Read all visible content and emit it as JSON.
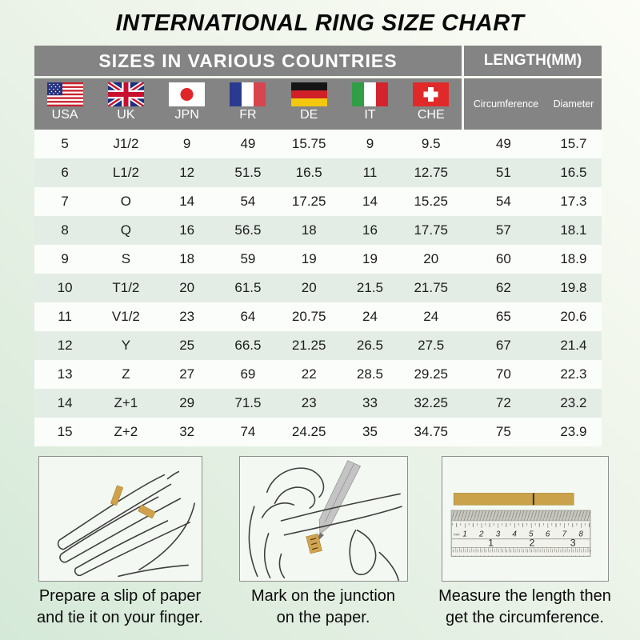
{
  "title": "INTERNATIONAL RING SIZE CHART",
  "chart_data": {
    "type": "table",
    "title": "INTERNATIONAL RING SIZE CHART",
    "group_headers": {
      "countries": "SIZES IN VARIOUS COUNTRIES",
      "length": "LENGTH(MM)"
    },
    "columns": [
      "USA",
      "UK",
      "JPN",
      "FR",
      "DE",
      "IT",
      "CHE",
      "Circumference",
      "Diameter"
    ],
    "column_keys": [
      "usa",
      "uk",
      "jpn",
      "fr",
      "de",
      "it",
      "che",
      "circumference",
      "diameter"
    ],
    "rows": [
      [
        "5",
        "J1/2",
        "9",
        "49",
        "15.75",
        "9",
        "9.5",
        "49",
        "15.7"
      ],
      [
        "6",
        "L1/2",
        "12",
        "51.5",
        "16.5",
        "11",
        "12.75",
        "51",
        "16.5"
      ],
      [
        "7",
        "O",
        "14",
        "54",
        "17.25",
        "14",
        "15.25",
        "54",
        "17.3"
      ],
      [
        "8",
        "Q",
        "16",
        "56.5",
        "18",
        "16",
        "17.75",
        "57",
        "18.1"
      ],
      [
        "9",
        "S",
        "18",
        "59",
        "19",
        "19",
        "20",
        "60",
        "18.9"
      ],
      [
        "10",
        "T1/2",
        "20",
        "61.5",
        "20",
        "21.5",
        "21.75",
        "62",
        "19.8"
      ],
      [
        "11",
        "V1/2",
        "23",
        "64",
        "20.75",
        "24",
        "24",
        "65",
        "20.6"
      ],
      [
        "12",
        "Y",
        "25",
        "66.5",
        "21.25",
        "26.5",
        "27.5",
        "67",
        "21.4"
      ],
      [
        "13",
        "Z",
        "27",
        "69",
        "22",
        "28.5",
        "29.25",
        "70",
        "22.3"
      ],
      [
        "14",
        "Z+1",
        "29",
        "71.5",
        "23",
        "33",
        "32.25",
        "72",
        "23.2"
      ],
      [
        "15",
        "Z+2",
        "32",
        "74",
        "24.25",
        "35",
        "34.75",
        "75",
        "23.9"
      ]
    ]
  },
  "flags": [
    {
      "country": "USA",
      "icon": "usa-flag-icon"
    },
    {
      "country": "UK",
      "icon": "uk-flag-icon"
    },
    {
      "country": "JPN",
      "icon": "jpn-flag-icon"
    },
    {
      "country": "FR",
      "icon": "fr-flag-icon"
    },
    {
      "country": "DE",
      "icon": "de-flag-icon"
    },
    {
      "country": "IT",
      "icon": "it-flag-icon"
    },
    {
      "country": "CHE",
      "icon": "che-flag-icon"
    }
  ],
  "steps": [
    {
      "line1": "Prepare a slip of paper",
      "line2": "and tie it on your finger."
    },
    {
      "line1": "Mark on the junction",
      "line2": "on the paper."
    },
    {
      "line1": "Measure the length then",
      "line2": "get the circumference."
    }
  ],
  "ruler": {
    "cm_numbers": [
      "1",
      "2",
      "3",
      "4",
      "5",
      "6",
      "7",
      "8"
    ],
    "inch_numbers": [
      "1",
      "2",
      "3"
    ],
    "unit_label": "mm"
  },
  "colors": {
    "header_gray": "#848484",
    "row_green": "#e4ede5",
    "row_white": "#fbfdfa",
    "paper_tan": "#c9a24a",
    "background_mint": "#d5e9d8"
  }
}
